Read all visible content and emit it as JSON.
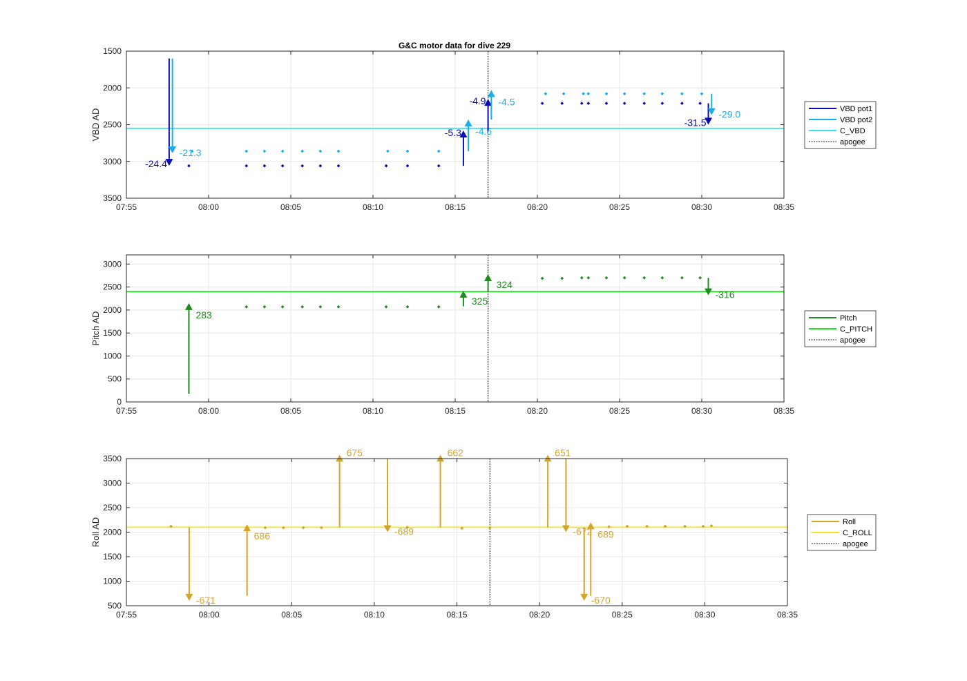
{
  "title": "G&C motor data for dive 229",
  "chart_data": [
    {
      "type": "scatter",
      "ylabel": "VBD AD",
      "ylim": [
        1500,
        3500
      ],
      "yreverse": true,
      "yticks": [
        1500,
        2000,
        2500,
        3000,
        3500
      ],
      "xlim": [
        "07:55",
        "08:35"
      ],
      "xticks": [
        "07:55",
        "08:00",
        "08:05",
        "08:10",
        "08:15",
        "08:20",
        "08:25",
        "08:30",
        "08:35"
      ],
      "grid": true,
      "legend_position": "outside-right",
      "legend": [
        "VBD pot1",
        "VBD pot2",
        "C_VBD",
        "apogee"
      ],
      "hlines": [
        {
          "name": "C_VBD",
          "y": 2550,
          "color": "#40e0e8"
        }
      ],
      "apogee": "08:17.0",
      "series": [
        {
          "name": "VBD pot1",
          "color": "#0a0ab4",
          "x": [
            "07:58.8",
            "08:02.3",
            "08:03.4",
            "08:04.5",
            "08:05.7",
            "08:06.8",
            "08:07.9",
            "08:10.8",
            "08:12.1",
            "08:14.0",
            "08:20.3",
            "08:21.5",
            "08:22.7",
            "08:23.1",
            "08:24.2",
            "08:25.3",
            "08:26.5",
            "08:27.6",
            "08:28.8",
            "08:29.9"
          ],
          "y": [
            3060,
            3060,
            3060,
            3060,
            3060,
            3060,
            3060,
            3060,
            3060,
            3060,
            2210,
            2210,
            2210,
            2210,
            2210,
            2210,
            2210,
            2210,
            2210,
            2210
          ]
        },
        {
          "name": "VBD pot2",
          "color": "#1aaee8",
          "x": [
            "07:59.0",
            "08:02.3",
            "08:03.4",
            "08:04.5",
            "08:05.7",
            "08:06.8",
            "08:07.9",
            "08:10.9",
            "08:12.1",
            "08:14.0",
            "08:20.5",
            "08:21.6",
            "08:22.8",
            "08:23.1",
            "08:24.2",
            "08:25.3",
            "08:26.5",
            "08:27.6",
            "08:28.8",
            "08:30.0"
          ],
          "y": [
            2860,
            2860,
            2860,
            2860,
            2860,
            2860,
            2860,
            2860,
            2860,
            2860,
            2080,
            2080,
            2080,
            2080,
            2080,
            2080,
            2080,
            2080,
            2080,
            2080
          ]
        }
      ],
      "arrows": [
        {
          "x": "07:57.6",
          "y0": 1600,
          "y1": 3060,
          "label": "-24.4",
          "color": "#0a0ab4",
          "label_side": "left"
        },
        {
          "x": "07:57.8",
          "y0": 1600,
          "y1": 2890,
          "label": "-21.3",
          "color": "#1aaee8",
          "label_side": "right"
        },
        {
          "x": "08:15.5",
          "y0": 3060,
          "y1": 2580,
          "label": "-5.3",
          "color": "#0a0ab4",
          "label_side": "left"
        },
        {
          "x": "08:15.8",
          "y0": 2860,
          "y1": 2430,
          "label": "-4.6",
          "color": "#1aaee8",
          "label_side": "right"
        },
        {
          "x": "08:17.0",
          "y0": 2580,
          "y1": 2150,
          "label": "-4.9",
          "color": "#0a0ab4",
          "label_side": "left"
        },
        {
          "x": "08:17.2",
          "y0": 2430,
          "y1": 2030,
          "label": "-4.5",
          "color": "#1aaee8",
          "label_side": "right"
        },
        {
          "x": "08:30.4",
          "y0": 2210,
          "y1": 2500,
          "label": "-31.5",
          "color": "#0a0ab4",
          "label_side": "left"
        },
        {
          "x": "08:30.6",
          "y0": 2080,
          "y1": 2370,
          "label": "-29.0",
          "color": "#1aaee8",
          "label_side": "right"
        }
      ]
    },
    {
      "type": "scatter",
      "ylabel": "Pitch AD",
      "ylim": [
        0,
        3200
      ],
      "yreverse": false,
      "yticks": [
        0,
        500,
        1000,
        1500,
        2000,
        2500,
        3000
      ],
      "xlim": [
        "07:55",
        "08:35"
      ],
      "xticks": [
        "07:55",
        "08:00",
        "08:05",
        "08:10",
        "08:15",
        "08:20",
        "08:25",
        "08:30",
        "08:35"
      ],
      "grid": true,
      "legend_position": "outside-right",
      "legend": [
        "Pitch",
        "C_PITCH",
        "apogee"
      ],
      "hlines": [
        {
          "name": "C_PITCH",
          "y": 2400,
          "color": "#22dd22"
        }
      ],
      "apogee": "08:17.0",
      "series": [
        {
          "name": "Pitch",
          "color": "#1f8a1f",
          "x": [
            "08:02.3",
            "08:03.4",
            "08:04.5",
            "08:05.7",
            "08:06.8",
            "08:07.9",
            "08:10.8",
            "08:12.1",
            "08:14.0",
            "08:20.3",
            "08:21.5",
            "08:22.7",
            "08:23.1",
            "08:24.2",
            "08:25.3",
            "08:26.5",
            "08:27.6",
            "08:28.8",
            "08:29.9"
          ],
          "y": [
            2070,
            2070,
            2070,
            2070,
            2070,
            2070,
            2070,
            2070,
            2070,
            2690,
            2690,
            2700,
            2700,
            2700,
            2700,
            2700,
            2700,
            2700,
            2700
          ]
        }
      ],
      "arrows": [
        {
          "x": "07:58.8",
          "y0": 180,
          "y1": 2150,
          "label": "283",
          "color": "#1f8a1f",
          "label_side": "right"
        },
        {
          "x": "08:15.5",
          "y0": 2080,
          "y1": 2420,
          "label": "325",
          "color": "#1f8a1f",
          "label_side": "right-low"
        },
        {
          "x": "08:17.0",
          "y0": 2400,
          "y1": 2780,
          "label": "324",
          "color": "#1f8a1f",
          "label_side": "right-low"
        },
        {
          "x": "08:30.4",
          "y0": 2700,
          "y1": 2320,
          "label": "-316",
          "color": "#1f8a1f",
          "label_side": "right"
        }
      ]
    },
    {
      "type": "scatter",
      "ylabel": "Roll AD",
      "ylim": [
        500,
        3500
      ],
      "yreverse": false,
      "yticks": [
        500,
        1000,
        1500,
        2000,
        2500,
        3000,
        3500
      ],
      "xlim": [
        "07:55",
        "08:35"
      ],
      "xticks": [
        "07:55",
        "08:00",
        "08:05",
        "08:10",
        "08:15",
        "08:20",
        "08:25",
        "08:30",
        "08:35"
      ],
      "grid": true,
      "legend_position": "outside-right",
      "legend": [
        "Roll",
        "C_ROLL",
        "apogee"
      ],
      "hlines": [
        {
          "name": "C_ROLL",
          "y": 2100,
          "color": "#f2e422"
        }
      ],
      "apogee": "08:17.0",
      "series": [
        {
          "name": "Roll",
          "color": "#d4a52a",
          "x": [
            "07:57.7",
            "08:03.4",
            "08:04.5",
            "08:05.7",
            "08:06.8",
            "08:12.0",
            "08:15.3",
            "08:17.0",
            "08:24.2",
            "08:25.3",
            "08:26.5",
            "08:27.6",
            "08:28.8",
            "08:29.9",
            "08:30.4"
          ],
          "y": [
            2120,
            2090,
            2090,
            2090,
            2090,
            2100,
            2080,
            2090,
            2110,
            2120,
            2120,
            2120,
            2120,
            2120,
            2130
          ]
        }
      ],
      "arrows": [
        {
          "x": "07:58.8",
          "y0": 2100,
          "y1": 600,
          "label": "-671",
          "color": "#d4a52a",
          "label_side": "right"
        },
        {
          "x": "08:02.3",
          "y0": 700,
          "y1": 2160,
          "label": "686",
          "color": "#d4a52a",
          "label_side": "right"
        },
        {
          "x": "08:07.9",
          "y0": 2100,
          "y1": 3580,
          "label": "675",
          "color": "#d4a52a",
          "label_side": "right"
        },
        {
          "x": "08:10.8",
          "y0": 3500,
          "y1": 2000,
          "label": "-689",
          "color": "#d4a52a",
          "label_side": "right"
        },
        {
          "x": "08:14.0",
          "y0": 2100,
          "y1": 3580,
          "label": "662",
          "color": "#d4a52a",
          "label_side": "right"
        },
        {
          "x": "08:20.5",
          "y0": 2100,
          "y1": 3580,
          "label": "651",
          "color": "#d4a52a",
          "label_side": "right"
        },
        {
          "x": "08:21.6",
          "y0": 3500,
          "y1": 2000,
          "label": "-672",
          "color": "#d4a52a",
          "label_side": "right"
        },
        {
          "x": "08:22.7",
          "y0": 2100,
          "y1": 600,
          "label": "-670",
          "color": "#d4a52a",
          "label_side": "right"
        },
        {
          "x": "08:23.1",
          "y0": 700,
          "y1": 2200,
          "label": "689",
          "color": "#d4a52a",
          "label_side": "right"
        }
      ]
    }
  ]
}
